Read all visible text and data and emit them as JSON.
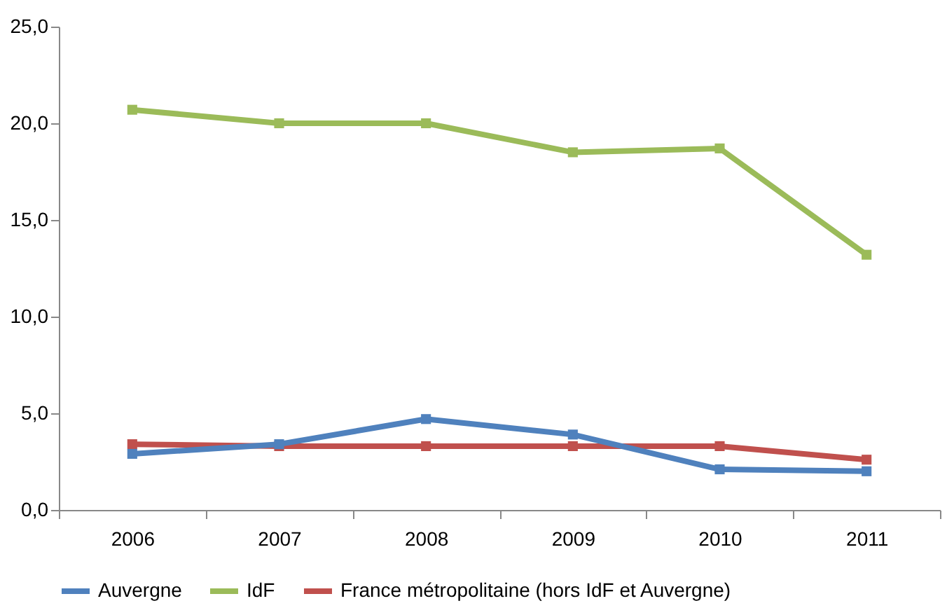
{
  "chart_data": {
    "type": "line",
    "categories": [
      "2006",
      "2007",
      "2008",
      "2009",
      "2010",
      "2011"
    ],
    "series": [
      {
        "name": "Auvergne",
        "color": "#4f81bd",
        "values": [
          2.9,
          3.4,
          4.7,
          3.9,
          2.1,
          2.0
        ]
      },
      {
        "name": "IdF",
        "color": "#9bbb59",
        "values": [
          20.7,
          20.0,
          20.0,
          18.5,
          18.7,
          13.2
        ]
      },
      {
        "name": "France métropolitaine (hors IdF et Auvergne)",
        "color": "#c0504d",
        "values": [
          3.4,
          3.3,
          3.3,
          3.3,
          3.3,
          2.6
        ]
      }
    ],
    "ylim": [
      0,
      25
    ],
    "yticks": [
      {
        "value": 0,
        "label": "0,0"
      },
      {
        "value": 5,
        "label": "5,0"
      },
      {
        "value": 10,
        "label": "10,0"
      },
      {
        "value": 15,
        "label": "15,0"
      },
      {
        "value": 20,
        "label": "20,0"
      },
      {
        "value": 25,
        "label": "25,0"
      }
    ],
    "grid": false,
    "legend": "bottom",
    "marker": "square",
    "line_style": "solid"
  }
}
